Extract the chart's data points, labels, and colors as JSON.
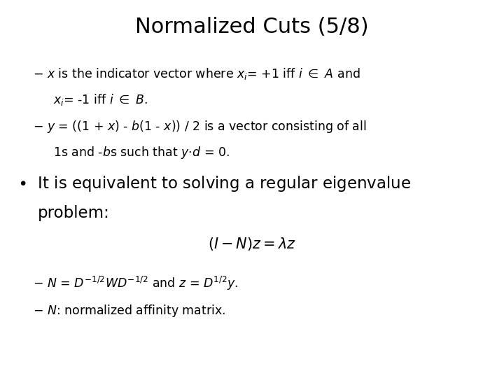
{
  "title": "Normalized Cuts (5/8)",
  "background_color": "#ffffff",
  "text_color": "#000000",
  "title_fontsize": 22,
  "body_fontsize": 12.5,
  "bullet_fontsize": 16.5,
  "eq_fontsize": 15
}
